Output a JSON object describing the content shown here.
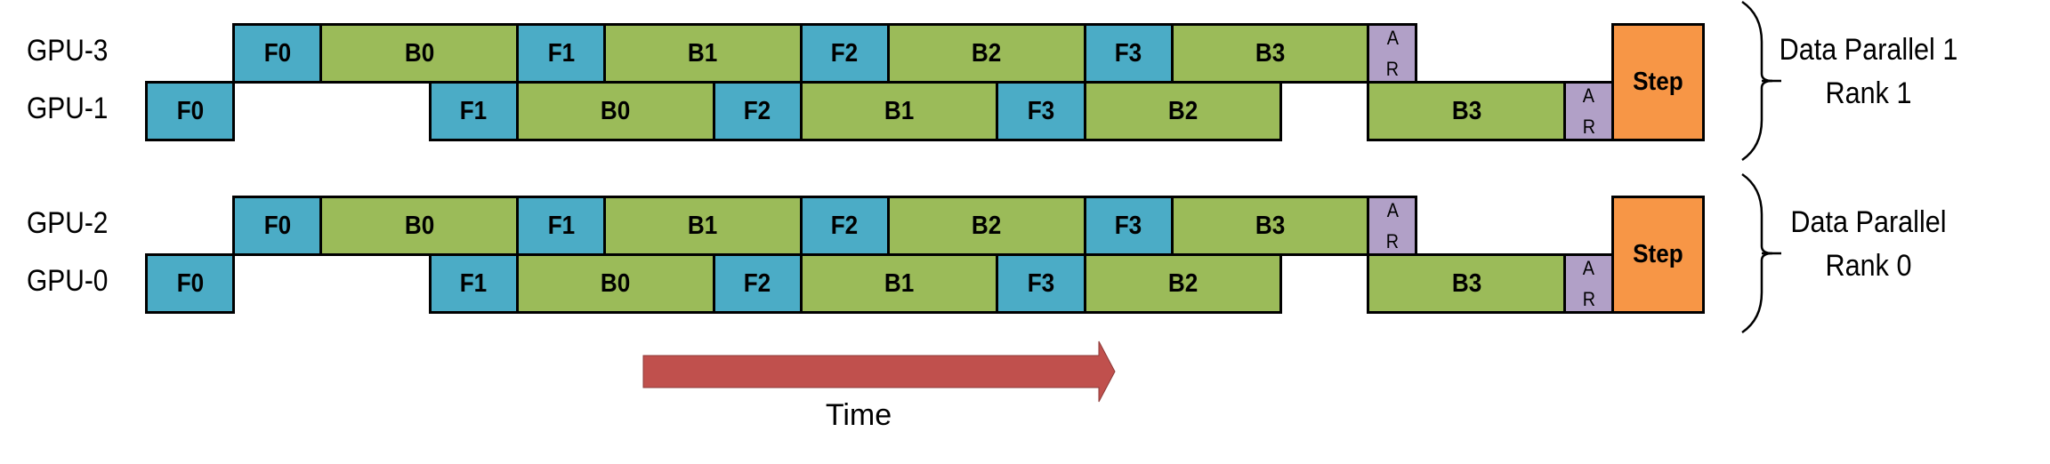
{
  "colors": {
    "forward": "#4BACC6",
    "backward": "#9BBB59",
    "allreduce": "#B1A0C7",
    "step": "#F79646",
    "arrow": "#C0504D"
  },
  "groups": [
    {
      "label_line1": "Data Parallel 1",
      "label_line2": "Rank 1",
      "rows": [
        {
          "gpu": "GPU-3",
          "blocks": [
            {
              "label": "F0",
              "kind": "forward",
              "start": 1,
              "end": 2
            },
            {
              "label": "B0",
              "kind": "backward",
              "start": 2,
              "end": 4.25
            },
            {
              "label": "F1",
              "kind": "forward",
              "start": 4.25,
              "end": 5.25
            },
            {
              "label": "B1",
              "kind": "backward",
              "start": 5.25,
              "end": 7.5
            },
            {
              "label": "F2",
              "kind": "forward",
              "start": 7.5,
              "end": 8.5
            },
            {
              "label": "B2",
              "kind": "backward",
              "start": 8.5,
              "end": 10.75
            },
            {
              "label": "F3",
              "kind": "forward",
              "start": 10.75,
              "end": 11.75
            },
            {
              "label": "B3",
              "kind": "backward",
              "start": 11.75,
              "end": 14
            },
            {
              "label": "A R",
              "kind": "allreduce",
              "start": 14,
              "end": 14.55
            }
          ]
        },
        {
          "gpu": "GPU-1",
          "blocks": [
            {
              "label": "F0",
              "kind": "forward",
              "start": 0,
              "end": 1
            },
            {
              "label": "F1",
              "kind": "forward",
              "start": 3.25,
              "end": 4.25
            },
            {
              "label": "B0",
              "kind": "backward",
              "start": 4.25,
              "end": 6.5
            },
            {
              "label": "F2",
              "kind": "forward",
              "start": 6.5,
              "end": 7.5
            },
            {
              "label": "B1",
              "kind": "backward",
              "start": 7.5,
              "end": 9.75
            },
            {
              "label": "F3",
              "kind": "forward",
              "start": 9.75,
              "end": 10.75
            },
            {
              "label": "B2",
              "kind": "backward",
              "start": 10.75,
              "end": 13
            },
            {
              "label": "B3",
              "kind": "backward",
              "start": 14,
              "end": 16.25
            },
            {
              "label": "A R",
              "kind": "allreduce",
              "start": 16.25,
              "end": 16.8
            }
          ]
        }
      ],
      "step": {
        "label": "Step",
        "start": 16.8,
        "end": 17.87
      }
    },
    {
      "label_line1": "Data Parallel",
      "label_line2": "Rank 0",
      "rows": [
        {
          "gpu": "GPU-2",
          "blocks": [
            {
              "label": "F0",
              "kind": "forward",
              "start": 1,
              "end": 2
            },
            {
              "label": "B0",
              "kind": "backward",
              "start": 2,
              "end": 4.25
            },
            {
              "label": "F1",
              "kind": "forward",
              "start": 4.25,
              "end": 5.25
            },
            {
              "label": "B1",
              "kind": "backward",
              "start": 5.25,
              "end": 7.5
            },
            {
              "label": "F2",
              "kind": "forward",
              "start": 7.5,
              "end": 8.5
            },
            {
              "label": "B2",
              "kind": "backward",
              "start": 8.5,
              "end": 10.75
            },
            {
              "label": "F3",
              "kind": "forward",
              "start": 10.75,
              "end": 11.75
            },
            {
              "label": "B3",
              "kind": "backward",
              "start": 11.75,
              "end": 14
            },
            {
              "label": "A R",
              "kind": "allreduce",
              "start": 14,
              "end": 14.55
            }
          ]
        },
        {
          "gpu": "GPU-0",
          "blocks": [
            {
              "label": "F0",
              "kind": "forward",
              "start": 0,
              "end": 1
            },
            {
              "label": "F1",
              "kind": "forward",
              "start": 3.25,
              "end": 4.25
            },
            {
              "label": "B0",
              "kind": "backward",
              "start": 4.25,
              "end": 6.5
            },
            {
              "label": "F2",
              "kind": "forward",
              "start": 6.5,
              "end": 7.5
            },
            {
              "label": "B1",
              "kind": "backward",
              "start": 7.5,
              "end": 9.75
            },
            {
              "label": "F3",
              "kind": "forward",
              "start": 9.75,
              "end": 10.75
            },
            {
              "label": "B2",
              "kind": "backward",
              "start": 10.75,
              "end": 13
            },
            {
              "label": "B3",
              "kind": "backward",
              "start": 14,
              "end": 16.25
            },
            {
              "label": "A R",
              "kind": "allreduce",
              "start": 16.25,
              "end": 16.8
            }
          ]
        }
      ],
      "step": {
        "label": "Step",
        "start": 16.8,
        "end": 17.87
      }
    }
  ],
  "time_label": "Time"
}
